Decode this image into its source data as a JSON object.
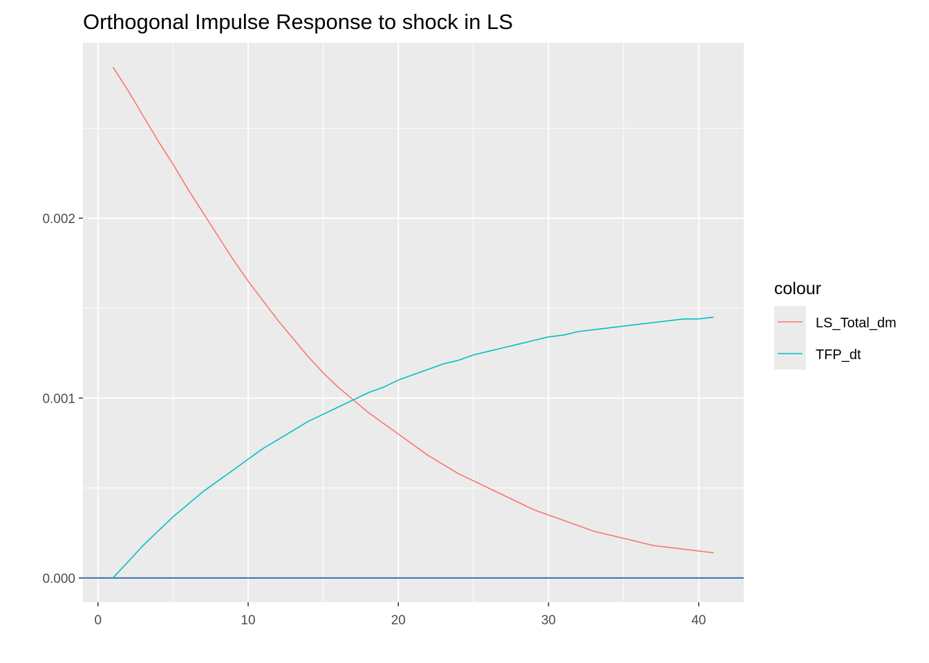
{
  "chart_data": {
    "type": "line",
    "title": "Orthogonal Impulse Response to shock in LS",
    "xlabel": "",
    "ylabel": "",
    "xlim": [
      -1.0,
      43.0
    ],
    "ylim": [
      -0.000135,
      0.002975
    ],
    "x_ticks": [
      0,
      10,
      20,
      30,
      40
    ],
    "x_tick_labels": [
      "0",
      "10",
      "20",
      "30",
      "40"
    ],
    "y_ticks": [
      0.0,
      0.001,
      0.002
    ],
    "y_tick_labels": [
      "0.000",
      "0.001",
      "0.002"
    ],
    "grid": true,
    "hline": {
      "y": 0.0,
      "color": "#3a6ea5"
    },
    "legend": {
      "title": "colour",
      "position": "right"
    },
    "x": [
      1,
      2,
      3,
      4,
      5,
      6,
      7,
      8,
      9,
      10,
      11,
      12,
      13,
      14,
      15,
      16,
      17,
      18,
      19,
      20,
      21,
      22,
      23,
      24,
      25,
      26,
      27,
      28,
      29,
      30,
      31,
      32,
      33,
      34,
      35,
      36,
      37,
      38,
      39,
      40,
      41
    ],
    "series": [
      {
        "name": "LS_Total_dm",
        "color": "#f8766d",
        "values": [
          0.00284,
          0.00271,
          0.00257,
          0.00243,
          0.0023,
          0.00216,
          0.00203,
          0.0019,
          0.00177,
          0.00165,
          0.00154,
          0.00143,
          0.00133,
          0.00123,
          0.00114,
          0.00106,
          0.00099,
          0.00092,
          0.00086,
          0.0008,
          0.00074,
          0.00068,
          0.00063,
          0.00058,
          0.00054,
          0.0005,
          0.00046,
          0.00042,
          0.00038,
          0.00035,
          0.00032,
          0.00029,
          0.00026,
          0.00024,
          0.00022,
          0.0002,
          0.00018,
          0.00017,
          0.00016,
          0.00015,
          0.00014
        ]
      },
      {
        "name": "TFP_dt",
        "color": "#00bfc4",
        "values": [
          0.0,
          9e-05,
          0.00018,
          0.00026,
          0.00034,
          0.00041,
          0.00048,
          0.00054,
          0.0006,
          0.00066,
          0.00072,
          0.00077,
          0.00082,
          0.00087,
          0.00091,
          0.00095,
          0.00099,
          0.00103,
          0.00106,
          0.0011,
          0.00113,
          0.00116,
          0.00119,
          0.00121,
          0.00124,
          0.00126,
          0.00128,
          0.0013,
          0.00132,
          0.00134,
          0.00135,
          0.00137,
          0.00138,
          0.00139,
          0.0014,
          0.00141,
          0.00142,
          0.00143,
          0.00144,
          0.00144,
          0.00145
        ]
      }
    ]
  }
}
